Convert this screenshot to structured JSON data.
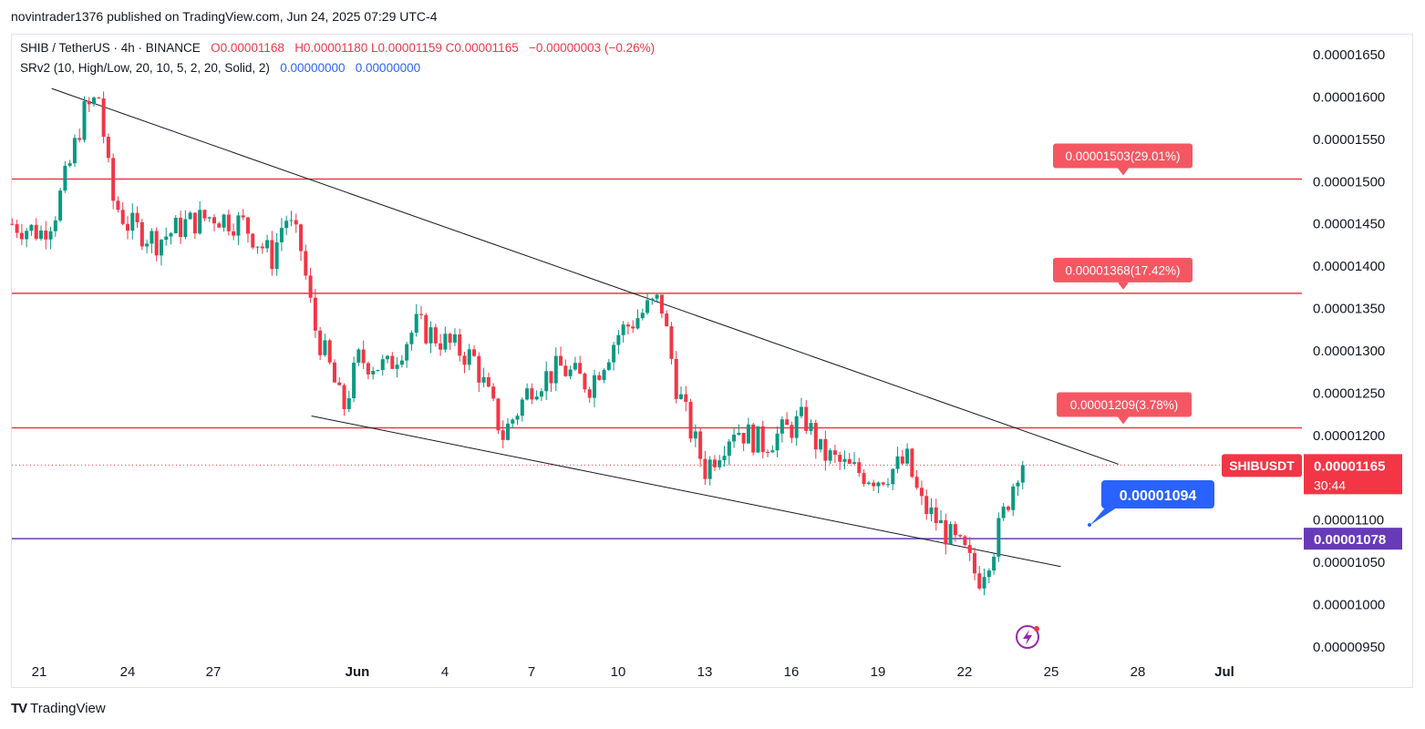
{
  "header": {
    "published": "novintrader1376 published on TradingView.com, Jun 24, 2025 07:29 UTC-4"
  },
  "legend": {
    "symbol": "SHIB / TetherUS · 4h · BINANCE",
    "open": "O0.00001168",
    "high": "H0.00001180",
    "low": "L0.00001159",
    "close": "C0.00001165",
    "change": "−0.00000003 (−0.26%)",
    "indicator": "SRv2 (10, High/Low, 20, 10, 5, 2, 20, Solid, 2)",
    "ind_v1": "0.00000000",
    "ind_v2": "0.00000000"
  },
  "brand": {
    "name": "TradingView",
    "logo": "TV"
  },
  "colors": {
    "up": "#089981",
    "down": "#f23645",
    "level": "#f23645",
    "purple": "#673ab7",
    "blue": "#2962ff",
    "trend": "#131722"
  },
  "chart_data": {
    "type": "candlestick",
    "symbol": "SHIBUSDT",
    "timeframe": "4h",
    "x_ticks": [
      "21",
      "24",
      "27",
      "Jun",
      "4",
      "7",
      "10",
      "13",
      "16",
      "19",
      "22",
      "25",
      "28",
      "Jul"
    ],
    "y_ticks": [
      "0.00001650",
      "0.00001600",
      "0.00001550",
      "0.00001500",
      "0.00001450",
      "0.00001400",
      "0.00001350",
      "0.00001300",
      "0.00001250",
      "0.00001200",
      "0.00001150",
      "0.00001100",
      "0.00001050",
      "0.00001000",
      "0.00000950"
    ],
    "ylim": [
      9.4e-06,
      1.67e-05
    ],
    "levels": [
      {
        "price": 1.503e-05,
        "label": "0.00001503(29.01%)"
      },
      {
        "price": 1.368e-05,
        "label": "0.00001368(17.42%)"
      },
      {
        "price": 1.209e-05,
        "label": "0.00001209(3.78%)"
      }
    ],
    "support_line": {
      "price": 1.078e-05,
      "label": "0.00001078"
    },
    "current_price": {
      "price": 1.165e-05,
      "label": "0.00001165",
      "symbol_label": "SHIBUSDT",
      "countdown": "30:44"
    },
    "callout": {
      "label": "0.00001094"
    },
    "trendlines": [
      {
        "from": [
          "May 22",
          1.61e-05
        ],
        "to": [
          "Jun 27",
          1.166e-05
        ]
      },
      {
        "from": [
          "May 31",
          1.223e-05
        ],
        "to": [
          "Jun 25",
          1.045e-05
        ]
      }
    ],
    "candles_close_path": [
      [
        "May 20",
        1.45e-05
      ],
      [
        "May 21",
        1.44e-05
      ],
      [
        "May 21",
        1.46e-05
      ],
      [
        "May 22",
        1.52e-05
      ],
      [
        "May 22",
        1.58e-05
      ],
      [
        "May 23",
        1.6e-05
      ],
      [
        "May 23",
        1.48e-05
      ],
      [
        "May 24",
        1.45e-05
      ],
      [
        "May 25",
        1.43e-05
      ],
      [
        "May 26",
        1.45e-05
      ],
      [
        "May 27",
        1.46e-05
      ],
      [
        "May 28",
        1.45e-05
      ],
      [
        "May 29",
        1.41e-05
      ],
      [
        "May 29",
        1.46e-05
      ],
      [
        "May 30",
        1.42e-05
      ],
      [
        "May 30",
        1.33e-05
      ],
      [
        "May 31",
        1.28e-05
      ],
      [
        "May 31",
        1.23e-05
      ],
      [
        "Jun 1",
        1.29e-05
      ],
      [
        "Jun 2",
        1.28e-05
      ],
      [
        "Jun 3",
        1.33e-05
      ],
      [
        "Jun 4",
        1.31e-05
      ],
      [
        "Jun 5",
        1.29e-05
      ],
      [
        "Jun 6",
        1.2e-05
      ],
      [
        "Jun 7",
        1.26e-05
      ],
      [
        "Jun 8",
        1.28e-05
      ],
      [
        "Jun 9",
        1.26e-05
      ],
      [
        "Jun 10",
        1.32e-05
      ],
      [
        "Jun 11",
        1.35e-05
      ],
      [
        "Jun 11",
        1.36e-05
      ],
      [
        "Jun 12",
        1.26e-05
      ],
      [
        "Jun 12",
        1.21e-05
      ],
      [
        "Jun 13",
        1.16e-05
      ],
      [
        "Jun 14",
        1.21e-05
      ],
      [
        "Jun 15",
        1.19e-05
      ],
      [
        "Jun 16",
        1.21e-05
      ],
      [
        "Jun 16",
        1.22e-05
      ],
      [
        "Jun 17",
        1.18e-05
      ],
      [
        "Jun 18",
        1.16e-05
      ],
      [
        "Jun 19",
        1.15e-05
      ],
      [
        "Jun 20",
        1.17e-05
      ],
      [
        "Jun 20",
        1.12e-05
      ],
      [
        "Jun 21",
        1.1e-05
      ],
      [
        "Jun 21",
        1.08e-05
      ],
      [
        "Jun 22",
        1.06e-05
      ],
      [
        "Jun 22",
        1.03e-05
      ],
      [
        "Jun 23",
        1.07e-05
      ],
      [
        "Jun 23",
        1.12e-05
      ],
      [
        "Jun 23",
        1.17e-05
      ],
      [
        "Jun 24",
        1.165e-05
      ]
    ]
  }
}
